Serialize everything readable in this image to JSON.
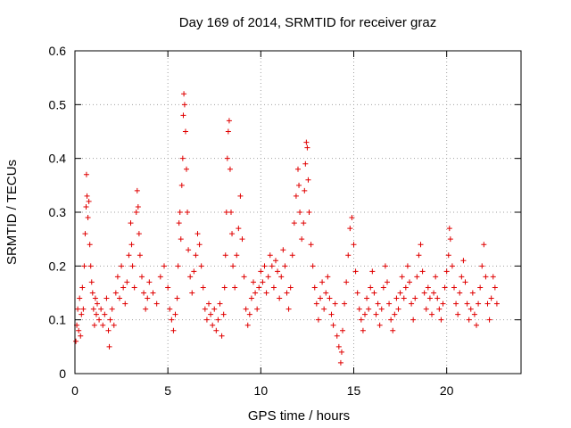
{
  "chart_data": {
    "type": "scatter",
    "title": "Day 169 of 2014, SRMTID for receiver graz",
    "xlabel": "GPS time / hours",
    "ylabel": "SRMTID / TECUs",
    "xlim": [
      0,
      24
    ],
    "ylim": [
      0,
      0.6
    ],
    "x_ticks": [
      0,
      5,
      10,
      15,
      20
    ],
    "x_tick_labels": [
      "0",
      "5",
      "10",
      "15",
      "20"
    ],
    "y_ticks": [
      0,
      0.1,
      0.2,
      0.3,
      0.4,
      0.5,
      0.6
    ],
    "y_tick_labels": [
      "0",
      "0.1",
      "0.2",
      "0.3",
      "0.4",
      "0.5",
      "0.6"
    ],
    "grid": true,
    "marker": "plus",
    "color": "#e00000",
    "series": [
      {
        "name": "SRMTID",
        "points": [
          [
            0.05,
            0.06
          ],
          [
            0.1,
            0.09
          ],
          [
            0.15,
            0.12
          ],
          [
            0.2,
            0.08
          ],
          [
            0.25,
            0.14
          ],
          [
            0.3,
            0.07
          ],
          [
            0.35,
            0.11
          ],
          [
            0.4,
            0.16
          ],
          [
            0.45,
            0.12
          ],
          [
            0.5,
            0.2
          ],
          [
            0.55,
            0.26
          ],
          [
            0.6,
            0.31
          ],
          [
            0.62,
            0.37
          ],
          [
            0.65,
            0.33
          ],
          [
            0.7,
            0.29
          ],
          [
            0.75,
            0.32
          ],
          [
            0.8,
            0.24
          ],
          [
            0.85,
            0.2
          ],
          [
            0.9,
            0.17
          ],
          [
            0.95,
            0.15
          ],
          [
            1.0,
            0.12
          ],
          [
            1.05,
            0.09
          ],
          [
            1.1,
            0.14
          ],
          [
            1.15,
            0.11
          ],
          [
            1.2,
            0.13
          ],
          [
            1.3,
            0.1
          ],
          [
            1.4,
            0.12
          ],
          [
            1.5,
            0.09
          ],
          [
            1.6,
            0.11
          ],
          [
            1.7,
            0.14
          ],
          [
            1.8,
            0.08
          ],
          [
            1.85,
            0.05
          ],
          [
            1.9,
            0.1
          ],
          [
            2.0,
            0.12
          ],
          [
            2.1,
            0.09
          ],
          [
            2.2,
            0.15
          ],
          [
            2.3,
            0.18
          ],
          [
            2.4,
            0.14
          ],
          [
            2.5,
            0.2
          ],
          [
            2.6,
            0.16
          ],
          [
            2.7,
            0.13
          ],
          [
            2.8,
            0.17
          ],
          [
            2.9,
            0.22
          ],
          [
            3.0,
            0.28
          ],
          [
            3.05,
            0.24
          ],
          [
            3.1,
            0.2
          ],
          [
            3.2,
            0.16
          ],
          [
            3.3,
            0.3
          ],
          [
            3.35,
            0.34
          ],
          [
            3.4,
            0.31
          ],
          [
            3.45,
            0.26
          ],
          [
            3.5,
            0.22
          ],
          [
            3.6,
            0.18
          ],
          [
            3.7,
            0.15
          ],
          [
            3.8,
            0.12
          ],
          [
            3.9,
            0.14
          ],
          [
            4.0,
            0.17
          ],
          [
            4.2,
            0.15
          ],
          [
            4.4,
            0.13
          ],
          [
            4.6,
            0.18
          ],
          [
            4.8,
            0.2
          ],
          [
            5.0,
            0.16
          ],
          [
            5.1,
            0.12
          ],
          [
            5.2,
            0.1
          ],
          [
            5.3,
            0.08
          ],
          [
            5.4,
            0.11
          ],
          [
            5.5,
            0.14
          ],
          [
            5.55,
            0.2
          ],
          [
            5.6,
            0.28
          ],
          [
            5.65,
            0.3
          ],
          [
            5.7,
            0.25
          ],
          [
            5.75,
            0.35
          ],
          [
            5.8,
            0.4
          ],
          [
            5.83,
            0.48
          ],
          [
            5.86,
            0.52
          ],
          [
            5.9,
            0.5
          ],
          [
            5.95,
            0.45
          ],
          [
            6.0,
            0.38
          ],
          [
            6.05,
            0.3
          ],
          [
            6.1,
            0.23
          ],
          [
            6.2,
            0.18
          ],
          [
            6.3,
            0.15
          ],
          [
            6.4,
            0.19
          ],
          [
            6.5,
            0.22
          ],
          [
            6.6,
            0.26
          ],
          [
            6.7,
            0.24
          ],
          [
            6.8,
            0.2
          ],
          [
            6.9,
            0.16
          ],
          [
            7.0,
            0.12
          ],
          [
            7.1,
            0.1
          ],
          [
            7.2,
            0.13
          ],
          [
            7.3,
            0.11
          ],
          [
            7.4,
            0.09
          ],
          [
            7.5,
            0.12
          ],
          [
            7.6,
            0.08
          ],
          [
            7.7,
            0.1
          ],
          [
            7.8,
            0.13
          ],
          [
            7.9,
            0.07
          ],
          [
            8.0,
            0.11
          ],
          [
            8.05,
            0.16
          ],
          [
            8.1,
            0.22
          ],
          [
            8.15,
            0.3
          ],
          [
            8.2,
            0.4
          ],
          [
            8.25,
            0.45
          ],
          [
            8.3,
            0.47
          ],
          [
            8.35,
            0.38
          ],
          [
            8.4,
            0.3
          ],
          [
            8.45,
            0.26
          ],
          [
            8.5,
            0.2
          ],
          [
            8.6,
            0.16
          ],
          [
            8.7,
            0.22
          ],
          [
            8.8,
            0.27
          ],
          [
            8.9,
            0.33
          ],
          [
            9.0,
            0.25
          ],
          [
            9.1,
            0.18
          ],
          [
            9.2,
            0.12
          ],
          [
            9.3,
            0.09
          ],
          [
            9.4,
            0.11
          ],
          [
            9.5,
            0.14
          ],
          [
            9.6,
            0.17
          ],
          [
            9.7,
            0.15
          ],
          [
            9.8,
            0.12
          ],
          [
            9.9,
            0.16
          ],
          [
            10.0,
            0.19
          ],
          [
            10.1,
            0.17
          ],
          [
            10.2,
            0.2
          ],
          [
            10.3,
            0.15
          ],
          [
            10.4,
            0.18
          ],
          [
            10.5,
            0.22
          ],
          [
            10.6,
            0.2
          ],
          [
            10.7,
            0.16
          ],
          [
            10.8,
            0.21
          ],
          [
            10.9,
            0.19
          ],
          [
            11.0,
            0.14
          ],
          [
            11.1,
            0.18
          ],
          [
            11.2,
            0.23
          ],
          [
            11.3,
            0.2
          ],
          [
            11.4,
            0.15
          ],
          [
            11.5,
            0.12
          ],
          [
            11.6,
            0.16
          ],
          [
            11.7,
            0.22
          ],
          [
            11.8,
            0.28
          ],
          [
            11.9,
            0.33
          ],
          [
            12.0,
            0.38
          ],
          [
            12.05,
            0.35
          ],
          [
            12.1,
            0.3
          ],
          [
            12.2,
            0.25
          ],
          [
            12.3,
            0.28
          ],
          [
            12.35,
            0.34
          ],
          [
            12.4,
            0.39
          ],
          [
            12.45,
            0.43
          ],
          [
            12.5,
            0.42
          ],
          [
            12.55,
            0.36
          ],
          [
            12.6,
            0.3
          ],
          [
            12.7,
            0.24
          ],
          [
            12.8,
            0.2
          ],
          [
            12.9,
            0.16
          ],
          [
            13.0,
            0.13
          ],
          [
            13.1,
            0.1
          ],
          [
            13.2,
            0.14
          ],
          [
            13.3,
            0.17
          ],
          [
            13.4,
            0.12
          ],
          [
            13.5,
            0.15
          ],
          [
            13.6,
            0.18
          ],
          [
            13.7,
            0.14
          ],
          [
            13.8,
            0.11
          ],
          [
            13.9,
            0.09
          ],
          [
            14.0,
            0.13
          ],
          [
            14.1,
            0.07
          ],
          [
            14.2,
            0.05
          ],
          [
            14.3,
            0.02
          ],
          [
            14.35,
            0.04
          ],
          [
            14.4,
            0.08
          ],
          [
            14.5,
            0.13
          ],
          [
            14.6,
            0.17
          ],
          [
            14.7,
            0.22
          ],
          [
            14.8,
            0.27
          ],
          [
            14.9,
            0.29
          ],
          [
            15.0,
            0.24
          ],
          [
            15.1,
            0.19
          ],
          [
            15.2,
            0.15
          ],
          [
            15.3,
            0.12
          ],
          [
            15.4,
            0.1
          ],
          [
            15.5,
            0.08
          ],
          [
            15.6,
            0.11
          ],
          [
            15.7,
            0.14
          ],
          [
            15.8,
            0.12
          ],
          [
            15.9,
            0.16
          ],
          [
            16.0,
            0.19
          ],
          [
            16.1,
            0.15
          ],
          [
            16.2,
            0.11
          ],
          [
            16.3,
            0.13
          ],
          [
            16.4,
            0.09
          ],
          [
            16.5,
            0.12
          ],
          [
            16.6,
            0.16
          ],
          [
            16.7,
            0.2
          ],
          [
            16.8,
            0.17
          ],
          [
            16.9,
            0.13
          ],
          [
            17.0,
            0.1
          ],
          [
            17.1,
            0.08
          ],
          [
            17.2,
            0.11
          ],
          [
            17.3,
            0.14
          ],
          [
            17.4,
            0.12
          ],
          [
            17.5,
            0.15
          ],
          [
            17.6,
            0.18
          ],
          [
            17.7,
            0.14
          ],
          [
            17.8,
            0.16
          ],
          [
            17.9,
            0.2
          ],
          [
            18.0,
            0.17
          ],
          [
            18.1,
            0.13
          ],
          [
            18.2,
            0.1
          ],
          [
            18.3,
            0.14
          ],
          [
            18.4,
            0.18
          ],
          [
            18.5,
            0.22
          ],
          [
            18.6,
            0.24
          ],
          [
            18.7,
            0.19
          ],
          [
            18.8,
            0.15
          ],
          [
            18.9,
            0.12
          ],
          [
            19.0,
            0.16
          ],
          [
            19.1,
            0.14
          ],
          [
            19.2,
            0.11
          ],
          [
            19.3,
            0.15
          ],
          [
            19.4,
            0.18
          ],
          [
            19.5,
            0.14
          ],
          [
            19.6,
            0.12
          ],
          [
            19.7,
            0.1
          ],
          [
            19.8,
            0.13
          ],
          [
            19.9,
            0.16
          ],
          [
            20.0,
            0.19
          ],
          [
            20.1,
            0.22
          ],
          [
            20.15,
            0.27
          ],
          [
            20.2,
            0.25
          ],
          [
            20.3,
            0.2
          ],
          [
            20.4,
            0.16
          ],
          [
            20.5,
            0.13
          ],
          [
            20.6,
            0.11
          ],
          [
            20.7,
            0.15
          ],
          [
            20.8,
            0.18
          ],
          [
            20.9,
            0.21
          ],
          [
            21.0,
            0.17
          ],
          [
            21.1,
            0.13
          ],
          [
            21.2,
            0.1
          ],
          [
            21.3,
            0.12
          ],
          [
            21.4,
            0.15
          ],
          [
            21.5,
            0.11
          ],
          [
            21.6,
            0.09
          ],
          [
            21.7,
            0.13
          ],
          [
            21.8,
            0.16
          ],
          [
            21.9,
            0.2
          ],
          [
            22.0,
            0.24
          ],
          [
            22.1,
            0.18
          ],
          [
            22.2,
            0.13
          ],
          [
            22.3,
            0.1
          ],
          [
            22.4,
            0.14
          ],
          [
            22.5,
            0.18
          ],
          [
            22.6,
            0.16
          ],
          [
            22.7,
            0.13
          ]
        ]
      }
    ]
  }
}
